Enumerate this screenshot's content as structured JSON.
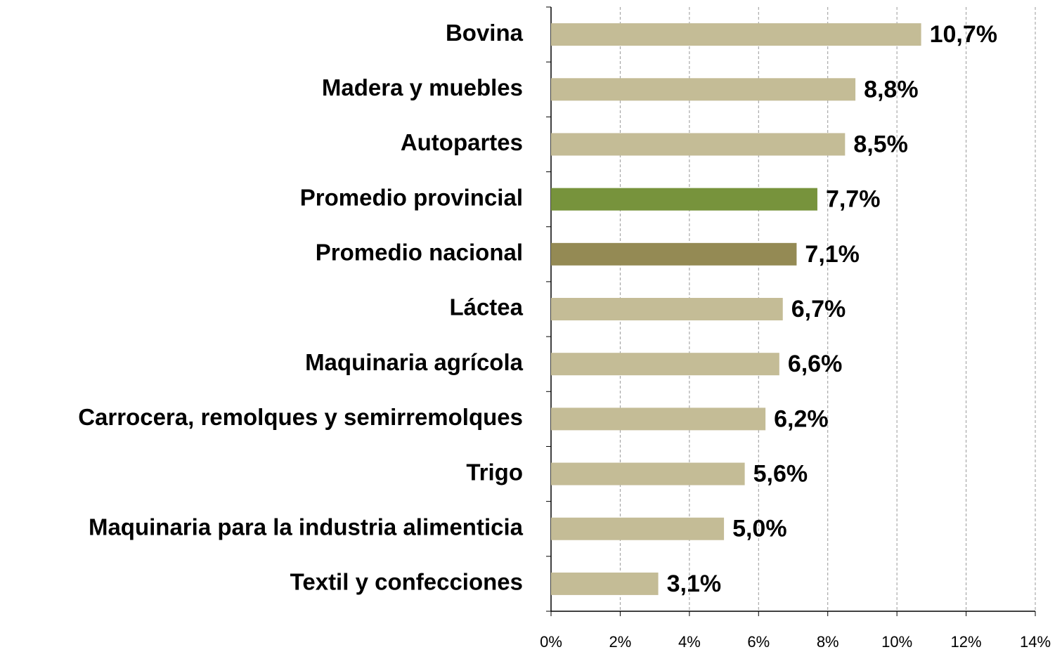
{
  "chart_data": {
    "type": "bar",
    "orientation": "horizontal",
    "categories": [
      "Bovina",
      "Madera y muebles",
      "Autopartes",
      "Promedio provincial",
      "Promedio nacional",
      "Láctea",
      "Maquinaria agrícola",
      "Carrocera, remolques y semirremolques",
      "Trigo",
      "Maquinaria para la industria alimenticia",
      "Textil y confecciones"
    ],
    "values": [
      10.7,
      8.8,
      8.5,
      7.7,
      7.1,
      6.7,
      6.6,
      6.2,
      5.6,
      5.0,
      3.1
    ],
    "value_labels": [
      "10,7%",
      "8,8%",
      "8,5%",
      "7,7%",
      "7,1%",
      "6,7%",
      "6,6%",
      "6,2%",
      "5,6%",
      "5,0%",
      "3,1%"
    ],
    "colors": [
      "#c4bc96",
      "#c4bc96",
      "#c4bc96",
      "#77933c",
      "#948a54",
      "#c4bc96",
      "#c4bc96",
      "#c4bc96",
      "#c4bc96",
      "#c4bc96",
      "#c4bc96"
    ],
    "xlim": [
      0,
      14
    ],
    "xticks": [
      {
        "value": 0,
        "label": "0%"
      },
      {
        "value": 2,
        "label": "2%"
      },
      {
        "value": 4,
        "label": "4%"
      },
      {
        "value": 6,
        "label": "6%"
      },
      {
        "value": 8,
        "label": "8%"
      },
      {
        "value": 10,
        "label": "10%"
      },
      {
        "value": 12,
        "label": "12%"
      },
      {
        "value": 14,
        "label": "14%"
      }
    ],
    "grid": true
  }
}
